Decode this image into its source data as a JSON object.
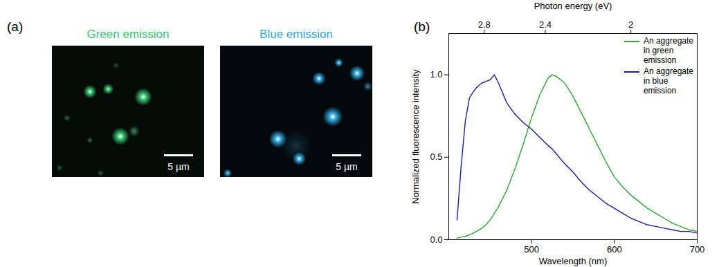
{
  "panel_a": {
    "label": "(a)",
    "images": [
      {
        "title": "Green emission",
        "color": "#35c46e",
        "scale_bar": "5 µm"
      },
      {
        "title": "Blue emission",
        "color": "#2fa6dc",
        "scale_bar": "5 µm"
      }
    ]
  },
  "chart_data": {
    "type": "line",
    "panel_label": "(b)",
    "xlabel": "Wavelength (nm)",
    "ylabel": "Normalized fluorescence intensity",
    "x2label": "Photon energy (eV)",
    "x2ticks": [
      2.8,
      2.4,
      2
    ],
    "x": [
      410,
      415,
      420,
      425,
      430,
      435,
      440,
      445,
      450,
      455,
      460,
      470,
      480,
      490,
      500,
      510,
      520,
      525,
      530,
      540,
      550,
      560,
      570,
      580,
      590,
      600,
      610,
      620,
      630,
      640,
      650,
      660,
      670,
      680,
      690,
      700
    ],
    "series": [
      {
        "name": "An aggregate in green emission",
        "color": "#2aa52a",
        "values": [
          0.01,
          0.015,
          0.02,
          0.03,
          0.04,
          0.055,
          0.07,
          0.09,
          0.12,
          0.16,
          0.2,
          0.3,
          0.43,
          0.58,
          0.74,
          0.88,
          0.98,
          1.0,
          0.99,
          0.95,
          0.87,
          0.77,
          0.67,
          0.57,
          0.47,
          0.38,
          0.32,
          0.27,
          0.23,
          0.19,
          0.16,
          0.13,
          0.1,
          0.08,
          0.06,
          0.05
        ]
      },
      {
        "name": "An aggregate in blue emission",
        "color": "#1a1aa8",
        "values": [
          0.12,
          0.45,
          0.72,
          0.86,
          0.9,
          0.93,
          0.95,
          0.96,
          0.97,
          1.0,
          0.95,
          0.83,
          0.76,
          0.71,
          0.67,
          0.62,
          0.57,
          0.55,
          0.52,
          0.46,
          0.41,
          0.35,
          0.3,
          0.26,
          0.22,
          0.19,
          0.16,
          0.13,
          0.11,
          0.09,
          0.08,
          0.07,
          0.06,
          0.05,
          0.05,
          0.04
        ]
      }
    ],
    "xlim": [
      400,
      700
    ],
    "xticks": [
      500,
      600,
      700
    ],
    "ylim": [
      0,
      1.25
    ],
    "yticks": [
      {
        "value": 0,
        "label": "0.0"
      },
      0.5,
      {
        "value": 1,
        "label": "1.0"
      }
    ],
    "legend": "top-right"
  }
}
